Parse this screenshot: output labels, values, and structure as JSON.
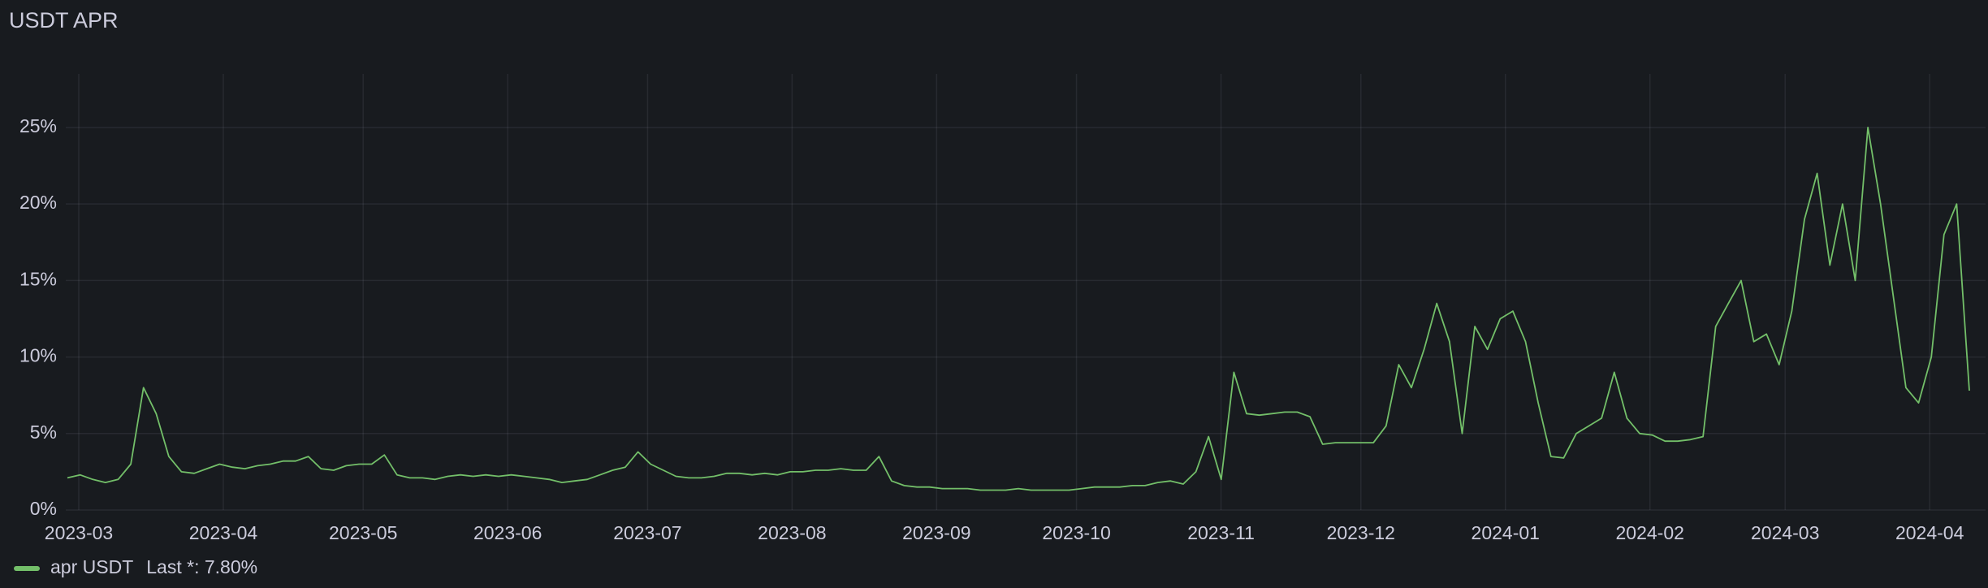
{
  "chart_data": {
    "type": "line",
    "title": "USDT APR",
    "ylim": [
      0,
      28.5
    ],
    "yticks": [
      {
        "value": 0,
        "label": "0%"
      },
      {
        "value": 5,
        "label": "5%"
      },
      {
        "value": 10,
        "label": "10%"
      },
      {
        "value": 15,
        "label": "15%"
      },
      {
        "value": 20,
        "label": "20%"
      },
      {
        "value": 25,
        "label": "25%"
      }
    ],
    "xticks": [
      "2023-03",
      "2023-04",
      "2023-05",
      "2023-06",
      "2023-07",
      "2023-08",
      "2023-09",
      "2023-10",
      "2023-11",
      "2023-12",
      "2024-01",
      "2024-02",
      "2024-03",
      "2024-04"
    ],
    "grid": true,
    "legend_position": "bottom-left",
    "legend_stat": "Last *: 7.80%",
    "series": [
      {
        "name": "apr USDT",
        "color": "#73bf69",
        "values": [
          2.1,
          2.3,
          2.0,
          1.8,
          2.0,
          3.0,
          8.0,
          6.3,
          3.5,
          2.5,
          2.4,
          2.7,
          3.0,
          2.8,
          2.7,
          2.9,
          3.0,
          3.2,
          3.2,
          3.5,
          2.7,
          2.6,
          2.9,
          3.0,
          3.0,
          3.6,
          2.3,
          2.1,
          2.1,
          2.0,
          2.2,
          2.3,
          2.2,
          2.3,
          2.2,
          2.3,
          2.2,
          2.1,
          2.0,
          1.8,
          1.9,
          2.0,
          2.3,
          2.6,
          2.8,
          3.8,
          3.0,
          2.6,
          2.2,
          2.1,
          2.1,
          2.2,
          2.4,
          2.4,
          2.3,
          2.4,
          2.3,
          2.5,
          2.5,
          2.6,
          2.6,
          2.7,
          2.6,
          2.6,
          3.5,
          1.9,
          1.6,
          1.5,
          1.5,
          1.4,
          1.4,
          1.4,
          1.3,
          1.3,
          1.3,
          1.4,
          1.3,
          1.3,
          1.3,
          1.3,
          1.4,
          1.5,
          1.5,
          1.5,
          1.6,
          1.6,
          1.8,
          1.9,
          1.7,
          2.5,
          4.8,
          2.0,
          9.0,
          6.3,
          6.2,
          6.3,
          6.4,
          6.4,
          6.1,
          4.3,
          4.4,
          4.4,
          4.4,
          4.4,
          5.5,
          9.5,
          8.0,
          10.5,
          13.5,
          11.0,
          5.0,
          12.0,
          10.5,
          12.5,
          13.0,
          11.0,
          7.0,
          3.5,
          3.4,
          5.0,
          5.5,
          6.0,
          9.0,
          6.0,
          5.0,
          4.9,
          4.5,
          4.5,
          4.6,
          4.8,
          12.0,
          13.5,
          15.0,
          11.0,
          11.5,
          9.5,
          13.0,
          19.0,
          22.0,
          16.0,
          20.0,
          15.0,
          25.0,
          20.0,
          14.0,
          8.0,
          7.0,
          10.0,
          18.0,
          20.0,
          7.8
        ]
      }
    ]
  }
}
